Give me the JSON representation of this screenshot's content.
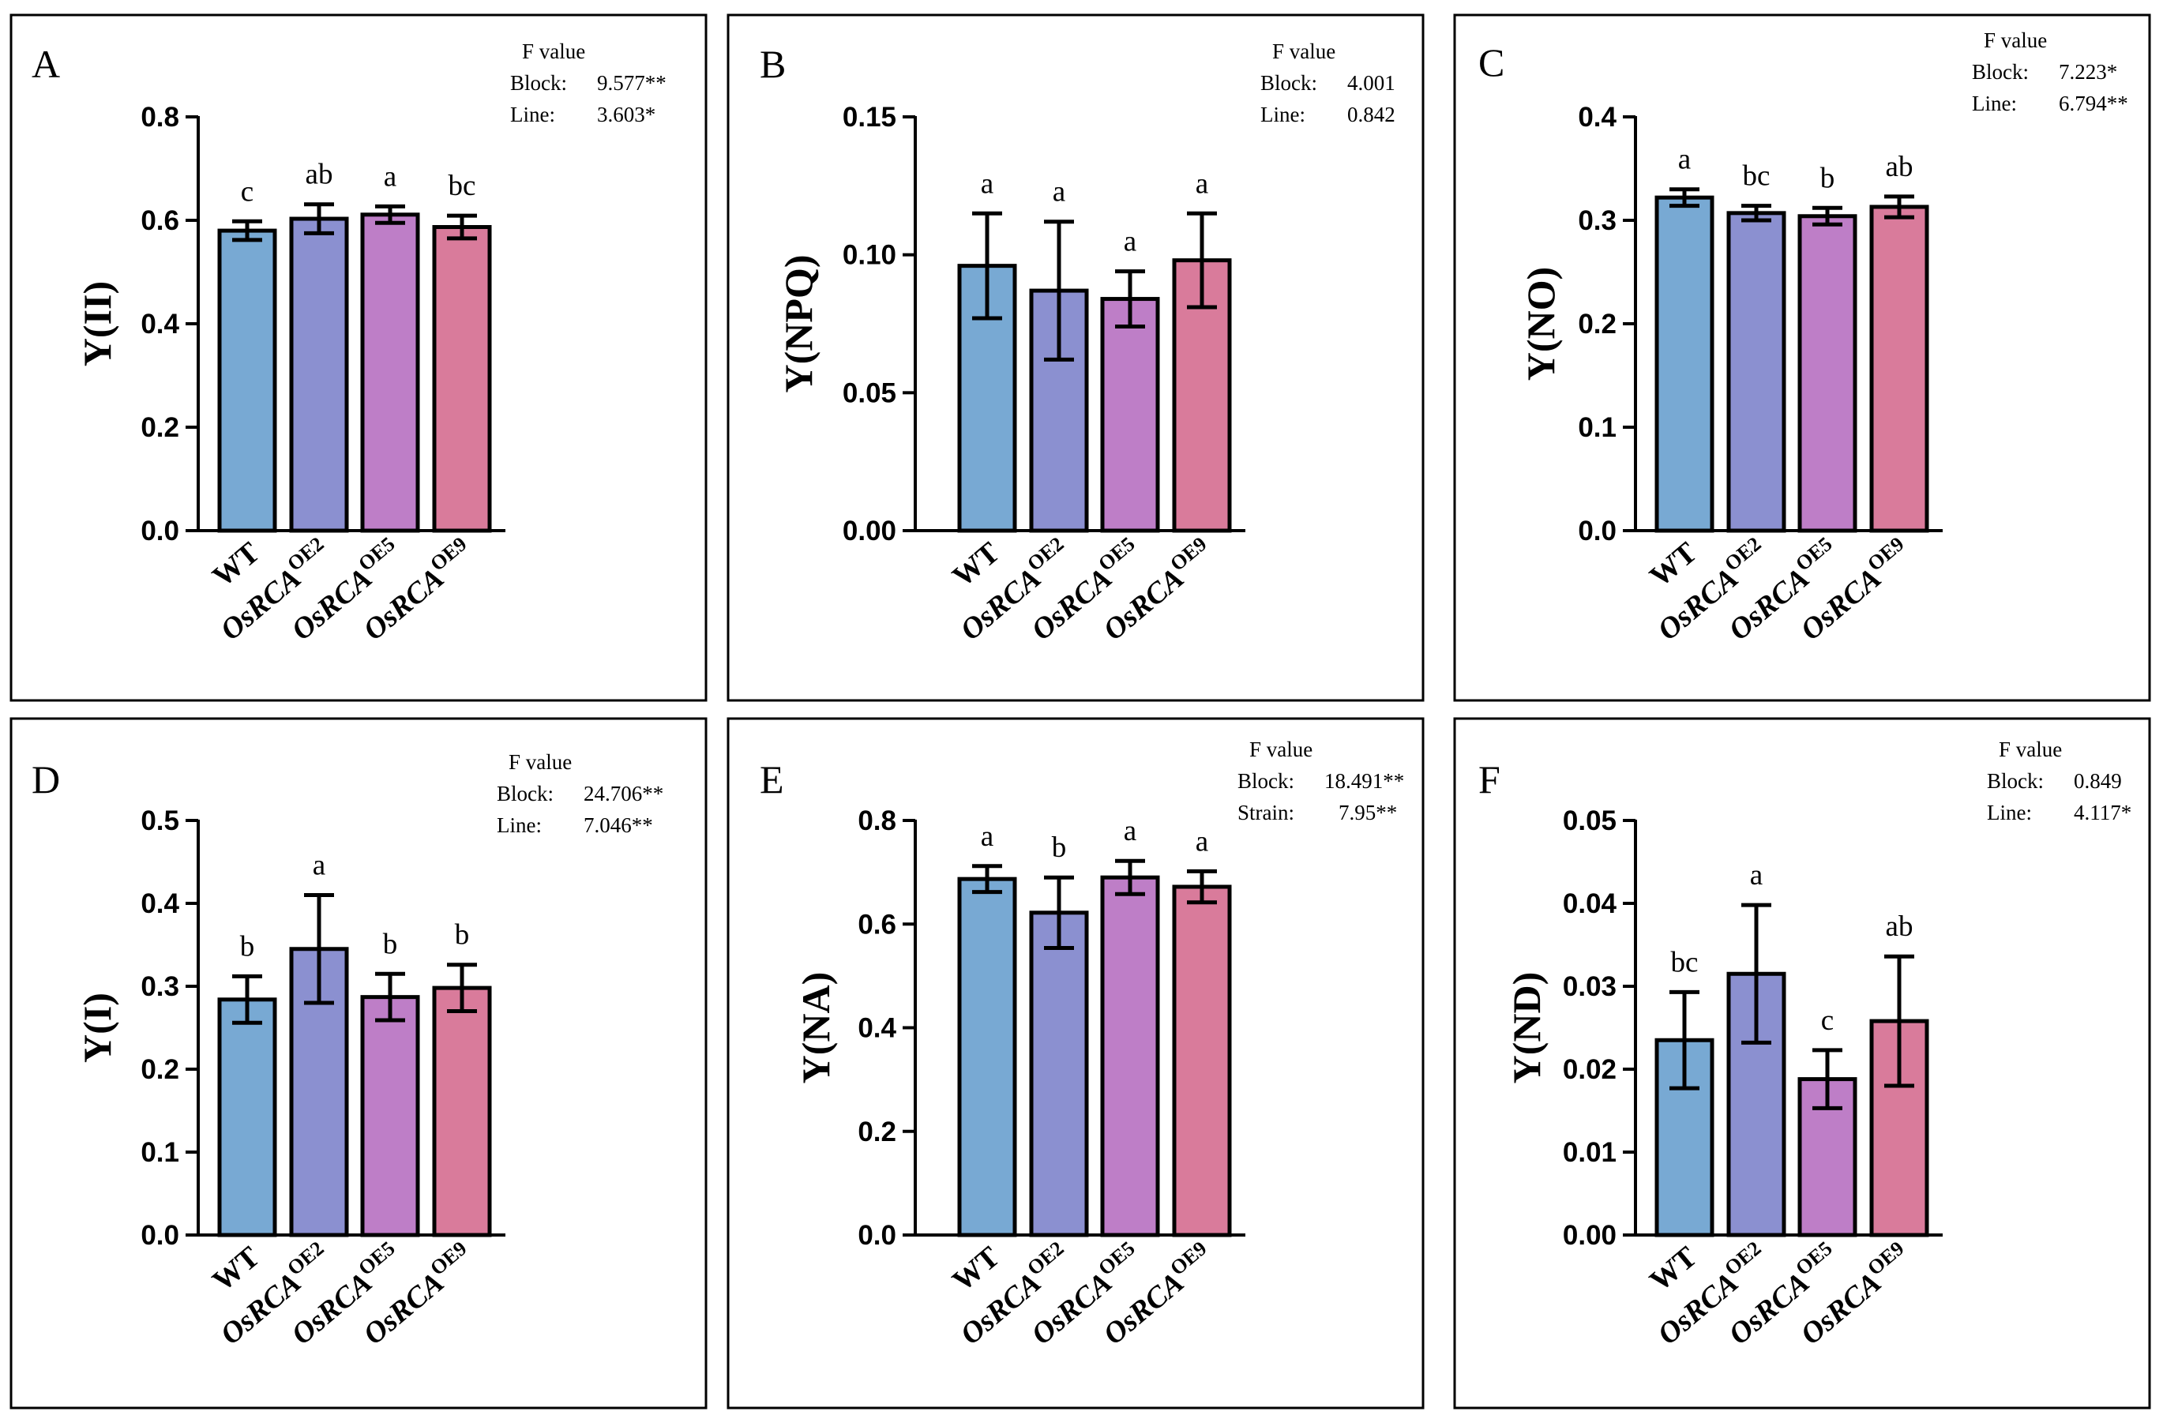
{
  "figure": {
    "colors": {
      "wt": "#78a9d3",
      "oe2": "#8b90d0",
      "oe5": "#be7ec7",
      "oe9": "#d97b9b",
      "frame": "#000000"
    }
  },
  "chart_data": [
    {
      "panel": "A",
      "type": "bar",
      "ylabel": "Y(II)",
      "ylim": [
        0,
        0.8
      ],
      "yticks": [
        "0.0",
        "0.2",
        "0.4",
        "0.6",
        "0.8"
      ],
      "categories": [
        {
          "base": "WT",
          "sup": ""
        },
        {
          "base": "OsRCA",
          "sup": "OE2"
        },
        {
          "base": "OsRCA",
          "sup": "OE5"
        },
        {
          "base": "OsRCA",
          "sup": "OE9"
        }
      ],
      "values": [
        0.58,
        0.603,
        0.611,
        0.587
      ],
      "errors": [
        0.018,
        0.028,
        0.016,
        0.022
      ],
      "letters": [
        "c",
        "ab",
        "a",
        "bc"
      ],
      "stats": {
        "header": "F value",
        "rows": [
          {
            "label": "Block:",
            "value": "9.577**"
          },
          {
            "label": "Line:",
            "value": "3.603*"
          }
        ]
      }
    },
    {
      "panel": "B",
      "type": "bar",
      "ylabel": "Y(NPQ)",
      "ylim": [
        0,
        0.15
      ],
      "yticks": [
        "0.00",
        "0.05",
        "0.10",
        "0.15"
      ],
      "categories": [
        {
          "base": "WT",
          "sup": ""
        },
        {
          "base": "OsRCA",
          "sup": "OE2"
        },
        {
          "base": "OsRCA",
          "sup": "OE5"
        },
        {
          "base": "OsRCA",
          "sup": "OE9"
        }
      ],
      "values": [
        0.096,
        0.087,
        0.084,
        0.098
      ],
      "errors": [
        0.019,
        0.025,
        0.01,
        0.017
      ],
      "letters": [
        "a",
        "a",
        "a",
        "a"
      ],
      "stats": {
        "header": "F value",
        "rows": [
          {
            "label": "Block:",
            "value": "4.001"
          },
          {
            "label": "Line:",
            "value": "0.842"
          }
        ]
      }
    },
    {
      "panel": "C",
      "type": "bar",
      "ylabel": "Y(NO)",
      "ylim": [
        0,
        0.4
      ],
      "yticks": [
        "0.0",
        "0.1",
        "0.2",
        "0.3",
        "0.4"
      ],
      "categories": [
        {
          "base": "WT",
          "sup": ""
        },
        {
          "base": "OsRCA",
          "sup": "OE2"
        },
        {
          "base": "OsRCA",
          "sup": "OE5"
        },
        {
          "base": "OsRCA",
          "sup": "OE9"
        }
      ],
      "values": [
        0.322,
        0.307,
        0.304,
        0.313
      ],
      "errors": [
        0.008,
        0.007,
        0.008,
        0.01
      ],
      "letters": [
        "a",
        "bc",
        "b",
        "ab"
      ],
      "stats": {
        "header": "F value",
        "rows": [
          {
            "label": "Block:",
            "value": "7.223*"
          },
          {
            "label": "Line:",
            "value": "6.794**"
          }
        ]
      }
    },
    {
      "panel": "D",
      "type": "bar",
      "ylabel": "Y(I)",
      "ylim": [
        0,
        0.5
      ],
      "yticks": [
        "0.0",
        "0.1",
        "0.2",
        "0.3",
        "0.4",
        "0.5"
      ],
      "categories": [
        {
          "base": "WT",
          "sup": ""
        },
        {
          "base": "OsRCA",
          "sup": "OE2"
        },
        {
          "base": "OsRCA",
          "sup": "OE5"
        },
        {
          "base": "OsRCA",
          "sup": "OE9"
        }
      ],
      "values": [
        0.284,
        0.345,
        0.287,
        0.298
      ],
      "errors": [
        0.028,
        0.065,
        0.028,
        0.028
      ],
      "letters": [
        "b",
        "a",
        "b",
        "b"
      ],
      "stats": {
        "header": "F value",
        "rows": [
          {
            "label": "Block:",
            "value": "24.706**"
          },
          {
            "label": "Line:",
            "value": "7.046**"
          }
        ]
      }
    },
    {
      "panel": "E",
      "type": "bar",
      "ylabel": "Y(NA)",
      "ylim": [
        0,
        0.8
      ],
      "yticks": [
        "0.0",
        "0.2",
        "0.4",
        "0.6",
        "0.8"
      ],
      "categories": [
        {
          "base": "WT",
          "sup": ""
        },
        {
          "base": "OsRCA",
          "sup": "OE2"
        },
        {
          "base": "OsRCA",
          "sup": "OE5"
        },
        {
          "base": "OsRCA",
          "sup": "OE9"
        }
      ],
      "values": [
        0.687,
        0.622,
        0.69,
        0.672
      ],
      "errors": [
        0.025,
        0.068,
        0.032,
        0.03
      ],
      "letters": [
        "a",
        "b",
        "a",
        "a"
      ],
      "stats": {
        "header": "F value",
        "rows": [
          {
            "label": "Block:",
            "value": "18.491**"
          },
          {
            "label": "Strain:",
            "value": "7.95**"
          }
        ]
      }
    },
    {
      "panel": "F",
      "type": "bar",
      "ylabel": "Y(ND)",
      "ylim": [
        0,
        0.05
      ],
      "yticks": [
        "0.00",
        "0.01",
        "0.02",
        "0.03",
        "0.04",
        "0.05"
      ],
      "categories": [
        {
          "base": "WT",
          "sup": ""
        },
        {
          "base": "OsRCA",
          "sup": "OE2"
        },
        {
          "base": "OsRCA",
          "sup": "OE5"
        },
        {
          "base": "OsRCA",
          "sup": "OE9"
        }
      ],
      "values": [
        0.0235,
        0.0315,
        0.0188,
        0.0258
      ],
      "errors": [
        0.0058,
        0.0083,
        0.0035,
        0.0078
      ],
      "letters": [
        "bc",
        "a",
        "c",
        "ab"
      ],
      "stats": {
        "header": "F value",
        "rows": [
          {
            "label": "Block:",
            "value": "0.849"
          },
          {
            "label": "Line:",
            "value": "4.117*"
          }
        ]
      }
    }
  ]
}
